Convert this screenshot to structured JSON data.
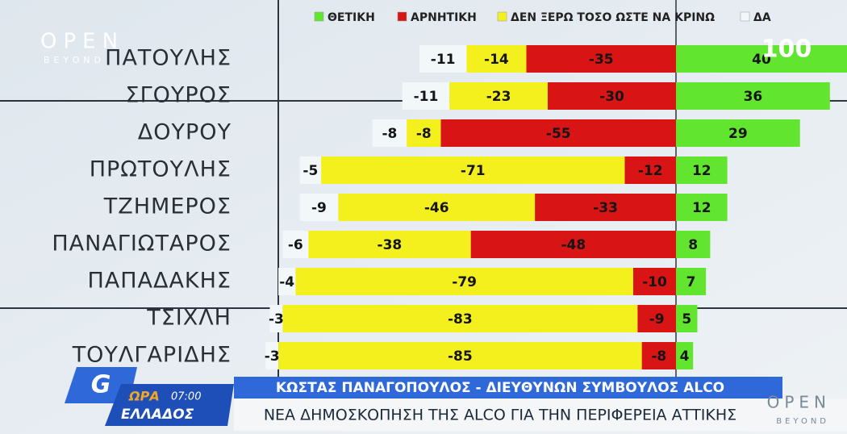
{
  "chart_data": {
    "type": "diverging-bar",
    "categories": [
      "ΠΑΤΟΥΛΗΣ",
      "ΣΓΟΥΡΟΣ",
      "ΔΟΥΡΟΥ",
      "ΠΡΩΤΟΥΛΗΣ",
      "ΤΖΗΜΕΡΟΣ",
      "ΠΑΝΑΓΙΩΤΑΡΟΣ",
      "ΠΑΠΑΔΑΚΗΣ",
      "ΤΣΙΧΛΗ",
      "ΤΟΥΛΓΑΡΙΔΗΣ"
    ],
    "series": [
      {
        "name": "ΘΕΤΙΚΗ",
        "color": "#62e52e",
        "values": [
          40,
          36,
          29,
          12,
          12,
          8,
          7,
          5,
          4
        ]
      },
      {
        "name": "ΑΡΝΗΤΙΚΗ",
        "color": "#d81414",
        "values": [
          -35,
          -30,
          -55,
          -12,
          -33,
          -48,
          -10,
          -9,
          -8
        ]
      },
      {
        "name": "ΔΕΝ ΞΕΡΩ ΤΟΣΟ ΩΣΤΕ ΝΑ ΚΡΙΝΩ",
        "color": "#f3f01e",
        "values": [
          -14,
          -23,
          -8,
          -71,
          -46,
          -38,
          -79,
          -83,
          -85
        ]
      },
      {
        "name": "ΔΑ",
        "color": "#f2f7fa",
        "values": [
          -11,
          -11,
          -8,
          -5,
          -9,
          -6,
          -4,
          -3,
          -3
        ]
      }
    ],
    "xlim": [
      -100,
      40
    ]
  },
  "broadcast": {
    "channel_logo": "OPEN",
    "channel_sub": "BEYOND",
    "badge": "100",
    "show_time": "07:00",
    "show_name_1": "ΩΡΑ",
    "show_name_2": "ΕΛΛΑΔΟΣ",
    "speaker": "ΚΩΣΤΑΣ ΠΑΝΑΓΟΠΟΥΛΟΣ - ΔΙΕΥΘΥΝΩΝ ΣΥΜΒΟΥΛΟΣ ALCO",
    "headline": "ΝΕΑ ΔΗΜΟΣΚΟΠΗΣΗ ΤΗΣ ALCO ΓΙΑ ΤΗΝ ΠΕΡΙΦΕΡΕΙΑ ΑΤΤΙΚΗΣ"
  }
}
